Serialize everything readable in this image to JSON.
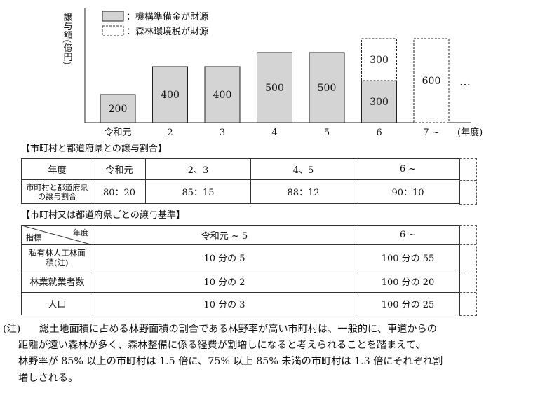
{
  "chart_data": {
    "type": "bar",
    "ylabel": "譲与額(億円)",
    "categories": [
      "令和元",
      "2",
      "3",
      "4",
      "5",
      "6",
      "7 ~"
    ],
    "x_unit": "(年度)",
    "series": [
      {
        "name": "：機構準備金が財源",
        "style": "solid",
        "values": [
          200,
          400,
          400,
          500,
          500,
          300,
          0
        ]
      },
      {
        "name": "：森林環境税が財源",
        "style": "dashed",
        "values": [
          0,
          0,
          0,
          0,
          0,
          300,
          600
        ]
      }
    ],
    "bar_labels": [
      {
        "category": "令和元",
        "series": 0,
        "text": "200"
      },
      {
        "category": "2",
        "series": 0,
        "text": "400"
      },
      {
        "category": "3",
        "series": 0,
        "text": "400"
      },
      {
        "category": "4",
        "series": 0,
        "text": "500"
      },
      {
        "category": "5",
        "series": 0,
        "text": "500"
      },
      {
        "category": "6",
        "series": 0,
        "text": "300"
      },
      {
        "category": "6",
        "series": 1,
        "text": "300"
      },
      {
        "category": "7 ~",
        "series": 1,
        "text": "600"
      }
    ],
    "continuation": "…",
    "colors": {
      "solid_fill": "#d4d4d4",
      "dashed_fill": "#ffffff",
      "stroke": "#222222"
    }
  },
  "section1": {
    "title": "【市町村と都道府県との譲与割合】",
    "header": [
      "年度",
      "令和元",
      "2、3",
      "4、5",
      "6 ~"
    ],
    "row_label": "市町村と都道府県の譲与割合",
    "values": [
      "80：20",
      "85：15",
      "88：12",
      "90：10"
    ]
  },
  "section2": {
    "title": "【市町村又は都道府県ごとの譲与基準】",
    "corner_top": "年度",
    "corner_bottom": "指標",
    "header": [
      "令和元 ~ 5",
      "6 ~"
    ],
    "rows": [
      {
        "label": "私有林人工林面積(注)",
        "v1": "10 分の 5",
        "v2": "100 分の 55"
      },
      {
        "label": "林業就業者数",
        "v1": "10 分の 2",
        "v2": "100 分の 20"
      },
      {
        "label": "人口",
        "v1": "10 分の 3",
        "v2": "100 分の 25"
      }
    ]
  },
  "note": {
    "mark": "(注)",
    "lines": [
      "総土地面積に占める林野面積の割合である林野率が高い市町村は、一般的に、車道からの",
      "距離が遠い森林が多く、森林整備に係る経費が割増しになると考えられることを踏まえて、",
      "林野率が 85% 以上の市町村は 1.5 倍に、75% 以上 85% 未満の市町村は 1.3 倍にそれぞれ割",
      "増しされる。"
    ]
  }
}
